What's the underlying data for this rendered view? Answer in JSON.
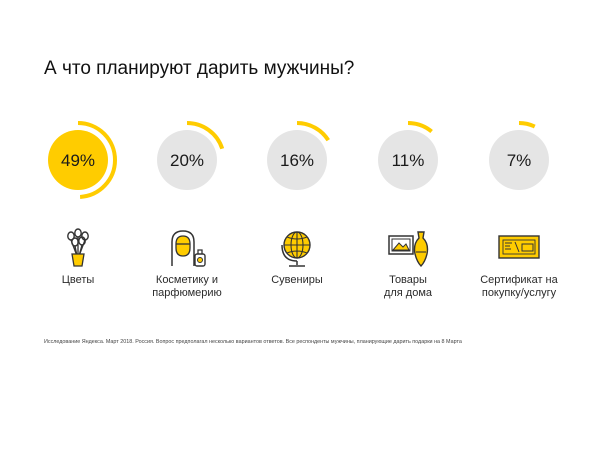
{
  "title": "А что планируют дарить мужчины?",
  "colors": {
    "accent": "#ffcc00",
    "circle": "#e5e5e5",
    "text": "#1a1a1a",
    "icon_dark": "#333333"
  },
  "chart_data": {
    "type": "bar",
    "categories": [
      "Цветы",
      "Косметику и\nпарфюмерию",
      "Сувениры",
      "Товары\nдля дома",
      "Сертификат на\nпокупку/услугу"
    ],
    "values": [
      49,
      20,
      16,
      11,
      7
    ],
    "value_labels": [
      "49%",
      "20%",
      "16%",
      "11%",
      "7%"
    ],
    "unit": "%",
    "ylim": [
      0,
      100
    ],
    "highlight_index": 0,
    "icons": [
      "flowers-icon",
      "cosmetics-icon",
      "globe-icon",
      "vase-picture-icon",
      "certificate-icon"
    ],
    "title": "А что планируют дарить мужчины?"
  },
  "footnote": "Исследование Яндекса. Март 2018. Россия. Вопрос предполагал несколько вариантов ответов. Все респонденты мужчины, планирующие дарить подарки на 8 Марта"
}
